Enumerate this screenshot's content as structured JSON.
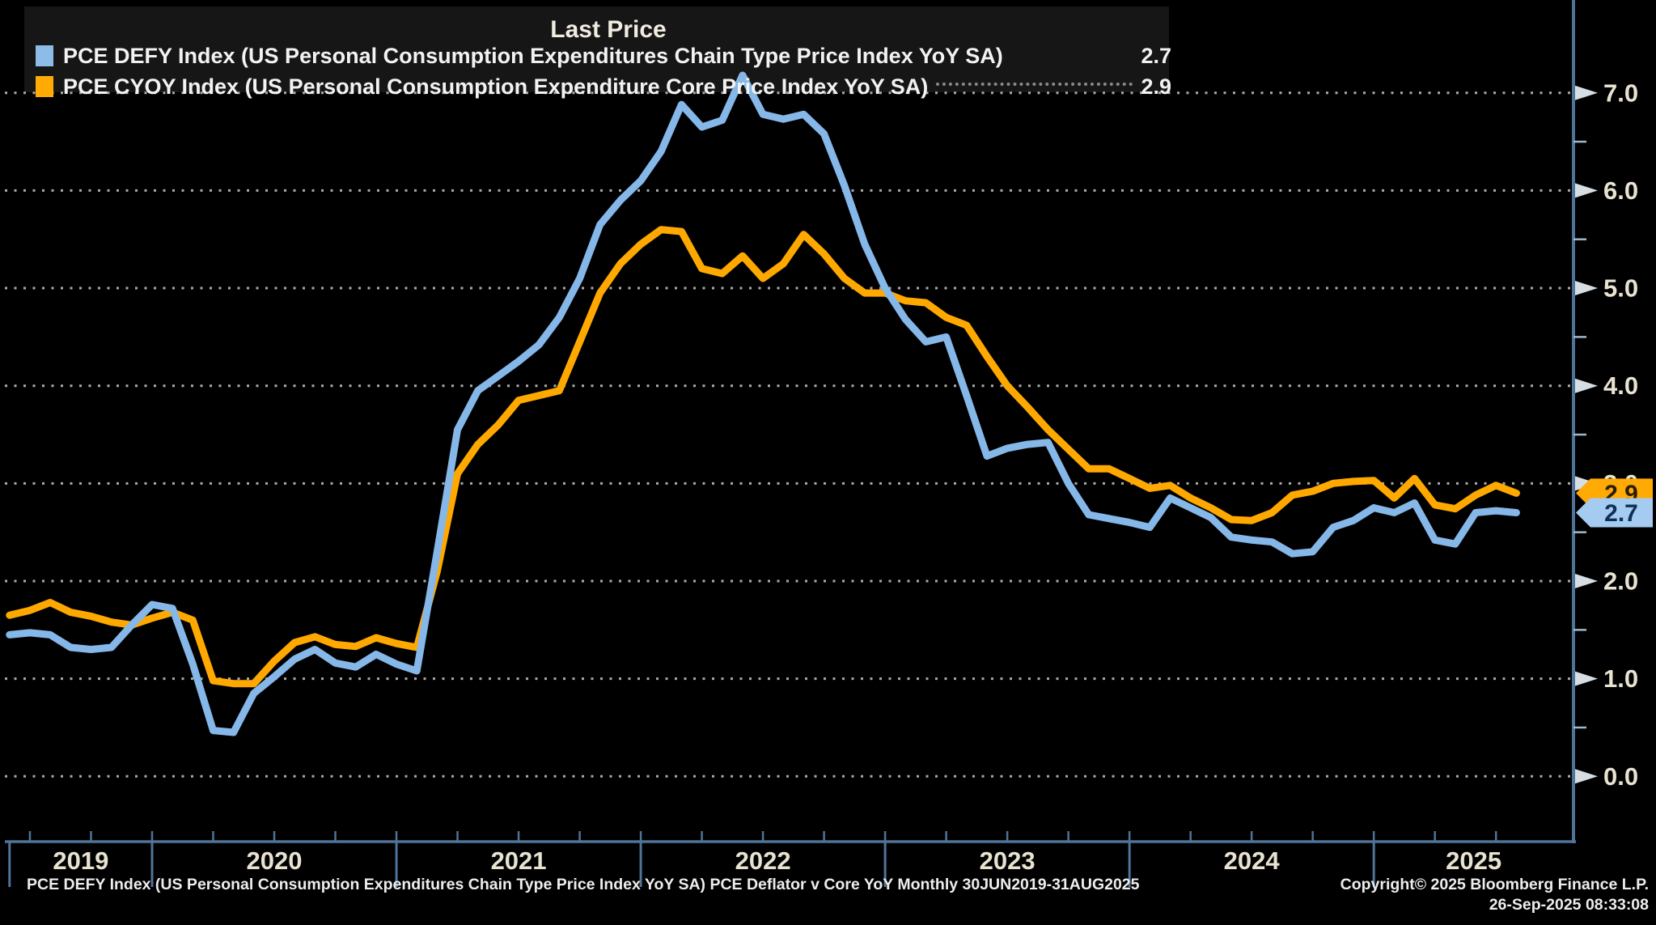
{
  "legend": {
    "title": "Last Price",
    "series": [
      {
        "swatch_color": "#8ebce8",
        "label": "PCE DEFY Index (US Personal Consumption Expenditures Chain Type Price Index YoY SA)",
        "value": "2.7"
      },
      {
        "swatch_color": "#ffaa05",
        "label": "PCE CYOY Index (US Personal Consumption Expenditure Core Price Index YoY SA)",
        "value": "2.9"
      }
    ]
  },
  "y_axis": {
    "ticks": [
      {
        "label": "7.0",
        "value": 7
      },
      {
        "label": "6.0",
        "value": 6
      },
      {
        "label": "5.0",
        "value": 5
      },
      {
        "label": "4.0",
        "value": 4
      },
      {
        "label": "3.0",
        "value": 3
      },
      {
        "label": "2.0",
        "value": 2
      },
      {
        "label": "1.0",
        "value": 1
      },
      {
        "label": "0.0",
        "value": 0
      }
    ],
    "minor_tick_values": [
      0.5,
      1.5,
      2.5,
      3.5,
      4.5,
      5.5,
      6.5
    ]
  },
  "x_axis": {
    "years": [
      "2019",
      "2020",
      "2021",
      "2022",
      "2023",
      "2024",
      "2025"
    ]
  },
  "badges": [
    {
      "label": "2.9",
      "value": 2.9,
      "bg": "#ffaa05",
      "text_color": "#2b1d00"
    },
    {
      "label": "2.7",
      "value": 2.7,
      "bg": "#a6cbf0",
      "text_color": "#0f3055"
    }
  ],
  "footer": {
    "left": "PCE DEFY Index (US Personal Consumption Expenditures Chain Type Price Index YoY SA) PCE Deflator v Core YoY  Monthly 30JUN2019-31AUG2025",
    "copyright": "Copyright© 2025 Bloomberg Finance L.P.",
    "timestamp": "26-Sep-2025 08:33:08"
  },
  "colors": {
    "background": "#000000",
    "legend_bg": "#161616",
    "blue": "#85b7e8",
    "orange": "#ffa800",
    "axis": "#4e7499",
    "grid": "#c8c8c8",
    "minor_tick": "#9db8cc",
    "arrow": "#d6dde3",
    "tick_label": "#e8e3d1"
  },
  "chart_data": {
    "type": "line",
    "title": "Last Price",
    "frequency": "monthly",
    "x_start": "2019-06",
    "x_end": "2025-08",
    "x_year_labels": [
      "2019",
      "2020",
      "2021",
      "2022",
      "2023",
      "2024",
      "2025"
    ],
    "ylim_visible": [
      0.0,
      7.0
    ],
    "y_ticks": [
      0,
      1,
      2,
      3,
      4,
      5,
      6,
      7
    ],
    "grid": "horizontal-dotted",
    "legend_position": "top-left",
    "series": [
      {
        "name": "PCE DEFY Index (US Personal Consumption Expenditures Chain Type Price Index YoY SA)",
        "color": "#85b7e8",
        "last_value": 2.7,
        "values": [
          1.45,
          1.47,
          1.45,
          1.32,
          1.3,
          1.32,
          1.55,
          1.76,
          1.72,
          1.15,
          0.47,
          0.45,
          0.85,
          1.02,
          1.2,
          1.3,
          1.16,
          1.12,
          1.25,
          1.15,
          1.08,
          2.3,
          3.55,
          3.95,
          4.1,
          4.25,
          4.42,
          4.7,
          5.1,
          5.65,
          5.9,
          6.1,
          6.4,
          6.88,
          6.65,
          6.72,
          7.18,
          6.78,
          6.73,
          6.78,
          6.58,
          6.05,
          5.45,
          5.0,
          4.68,
          4.45,
          4.5,
          3.9,
          3.28,
          3.36,
          3.4,
          3.42,
          3.0,
          2.68,
          2.64,
          2.6,
          2.55,
          2.85,
          2.75,
          2.65,
          2.45,
          2.42,
          2.4,
          2.28,
          2.3,
          2.55,
          2.62,
          2.75,
          2.7,
          2.8,
          2.42,
          2.38,
          2.7,
          2.72,
          2.7
        ]
      },
      {
        "name": "PCE CYOY Index (US Personal Consumption Expenditure Core Price Index YoY SA)",
        "color": "#ffa800",
        "last_value": 2.9,
        "values": [
          1.65,
          1.7,
          1.78,
          1.68,
          1.64,
          1.58,
          1.55,
          1.62,
          1.68,
          1.6,
          0.98,
          0.95,
          0.95,
          1.18,
          1.37,
          1.43,
          1.35,
          1.33,
          1.42,
          1.36,
          1.32,
          2.1,
          3.1,
          3.4,
          3.6,
          3.85,
          3.9,
          3.95,
          4.45,
          4.95,
          5.25,
          5.45,
          5.6,
          5.58,
          5.2,
          5.15,
          5.33,
          5.1,
          5.25,
          5.55,
          5.35,
          5.1,
          4.95,
          4.95,
          4.87,
          4.85,
          4.7,
          4.62,
          4.3,
          4.0,
          3.78,
          3.55,
          3.35,
          3.15,
          3.15,
          3.05,
          2.95,
          2.98,
          2.85,
          2.75,
          2.63,
          2.62,
          2.7,
          2.88,
          2.92,
          3.0,
          3.02,
          3.03,
          2.85,
          3.05,
          2.78,
          2.74,
          2.88,
          2.98,
          2.9
        ]
      }
    ]
  }
}
